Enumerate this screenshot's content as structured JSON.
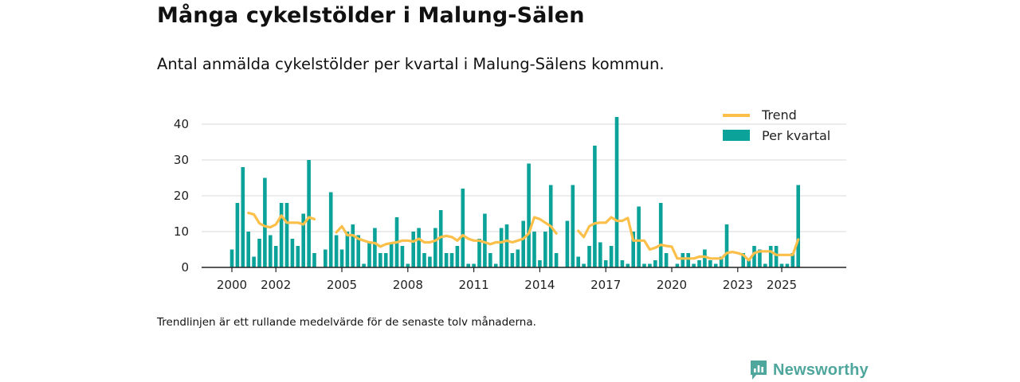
{
  "title": "Många cykelstölder i Malung-Sälen",
  "subtitle": "Antal anmälda cykelstölder per kvartal i Malung-Sälens kommun.",
  "note": "Trendlinjen är ett rullande medelvärde för de senaste tolv månaderna.",
  "brand": {
    "name": "Newsworthy",
    "icon": "newsworthy-logo-icon"
  },
  "colors": {
    "bar": "#0ba29a",
    "trend": "#fbbf4a",
    "grid": "#d9d9d9",
    "axis": "#222222",
    "brand": "#4fa69d"
  },
  "chart_data": {
    "type": "bar",
    "title": "Antal anmälda cykelstölder per kvartal",
    "xlabel": "",
    "ylabel": "",
    "ylim": [
      0,
      45
    ],
    "yticks": [
      0,
      10,
      20,
      30,
      40
    ],
    "xticks": [
      "2000",
      "2002",
      "2005",
      "2008",
      "2011",
      "2014",
      "2017",
      "2020",
      "2023",
      "2025"
    ],
    "legend": [
      {
        "label": "Trend",
        "kind": "line"
      },
      {
        "label": "Per kvartal",
        "kind": "bar"
      }
    ],
    "legend_position": "top-right",
    "series": [
      {
        "name": "Per kvartal",
        "kind": "bar",
        "values": [
          5,
          18,
          28,
          10,
          3,
          8,
          25,
          9,
          6,
          18,
          18,
          8,
          6,
          15,
          30,
          4,
          null,
          5,
          21,
          9,
          5,
          10,
          12,
          9,
          1,
          7,
          11,
          4,
          4,
          7,
          14,
          6,
          1,
          10,
          11,
          4,
          3,
          11,
          16,
          4,
          4,
          6,
          22,
          1,
          1,
          8,
          15,
          4,
          1,
          11,
          12,
          4,
          5,
          13,
          29,
          10,
          2,
          10,
          23,
          4,
          null,
          13,
          23,
          3,
          1,
          6,
          34,
          7,
          2,
          6,
          42,
          2,
          1,
          10,
          17,
          1,
          1,
          2,
          18,
          4,
          null,
          1,
          4,
          4,
          1,
          2,
          5,
          2,
          1,
          3,
          12,
          null,
          null,
          4,
          2,
          6,
          5,
          1,
          6,
          6,
          1,
          1,
          4,
          23
        ]
      },
      {
        "name": "Trend",
        "kind": "line",
        "values": [
          null,
          null,
          null,
          15.2,
          14.8,
          12.3,
          11.5,
          11.2,
          12.0,
          14.5,
          12.5,
          12.5,
          12.5,
          12.0,
          14.0,
          13.5,
          null,
          null,
          null,
          9.8,
          11.5,
          9.0,
          9.0,
          8.0,
          7.5,
          7.0,
          6.8,
          5.8,
          6.5,
          6.8,
          7.0,
          7.5,
          7.5,
          7.2,
          8.0,
          7.0,
          7.0,
          7.5,
          8.5,
          8.8,
          8.5,
          7.5,
          9.0,
          8.0,
          7.5,
          7.5,
          7.0,
          6.5,
          7.0,
          7.0,
          7.5,
          7.0,
          7.5,
          8.0,
          9.5,
          14.0,
          13.5,
          12.5,
          11.5,
          9.5,
          null,
          null,
          null,
          10.2,
          8.5,
          11.5,
          12.3,
          12.5,
          12.5,
          14.0,
          13.0,
          13.0,
          13.8,
          7.5,
          7.5,
          7.5,
          5.0,
          5.5,
          6.3,
          6.0,
          5.8,
          2.5,
          2.5,
          2.5,
          2.5,
          3.0,
          3.0,
          2.5,
          2.5,
          2.5,
          4.0,
          4.3,
          4.0,
          3.5,
          2.0,
          4.0,
          4.5,
          4.5,
          4.5,
          3.5,
          3.5,
          3.5,
          3.5,
          7.8
        ]
      }
    ]
  }
}
